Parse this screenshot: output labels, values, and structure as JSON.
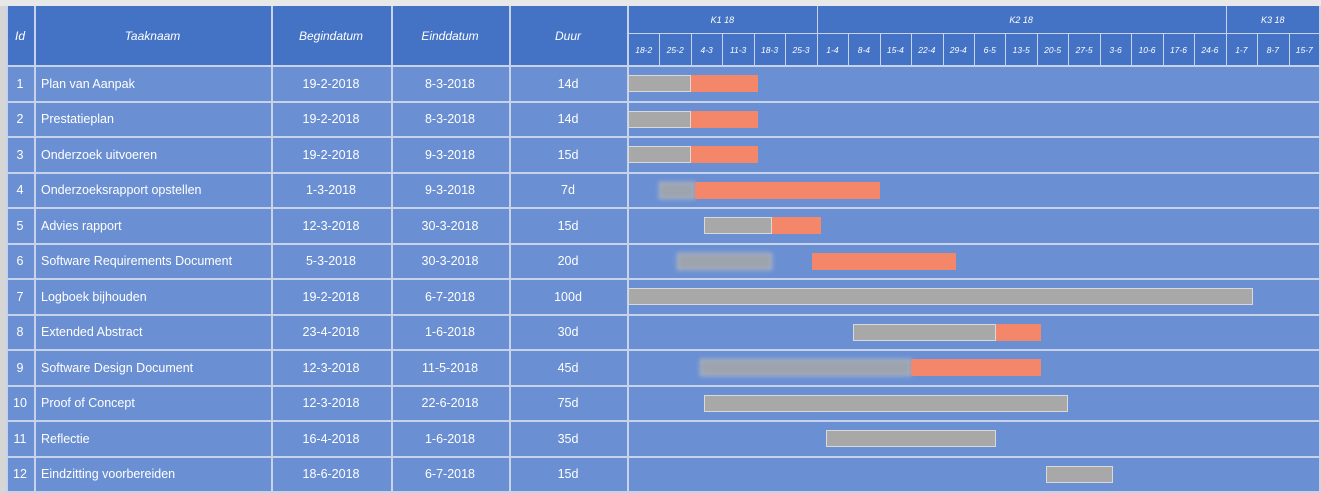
{
  "columns": {
    "id": "Id",
    "name": "Taaknaam",
    "start": "Begindatum",
    "end": "Einddatum",
    "duration": "Duur"
  },
  "quarters": [
    "K1 18",
    "K2 18",
    "K3 18"
  ],
  "weeks": [
    "18-2",
    "25-2",
    "4-3",
    "11-3",
    "18-3",
    "25-3",
    "1-4",
    "8-4",
    "15-4",
    "22-4",
    "29-4",
    "6-5",
    "13-5",
    "20-5",
    "27-5",
    "3-6",
    "10-6",
    "17-6",
    "24-6",
    "1-7",
    "8-7",
    "15-7"
  ],
  "colors": {
    "header": "#4472c4",
    "row": "#6a8fd2",
    "planned": "#a8a8a8",
    "progress": "#f4876a",
    "grid": "#c7d3ea"
  },
  "chart_data": {
    "type": "gantt",
    "title": "",
    "timeline_start": "2018-02-18",
    "timeline_end": "2018-07-22",
    "tasks": [
      {
        "id": "1",
        "name": "Plan van Aanpak",
        "start": "19-2-2018",
        "end": "8-3-2018",
        "duration": "14d",
        "gray": [
          "2018-02-18",
          "2018-03-04"
        ],
        "orange": [
          "2018-03-04",
          "2018-03-19"
        ]
      },
      {
        "id": "2",
        "name": "Prestatieplan",
        "start": "19-2-2018",
        "end": "8-3-2018",
        "duration": "14d",
        "gray": [
          "2018-02-18",
          "2018-03-04"
        ],
        "orange": [
          "2018-03-04",
          "2018-03-19"
        ]
      },
      {
        "id": "3",
        "name": "Onderzoek uitvoeren",
        "start": "19-2-2018",
        "end": "9-3-2018",
        "duration": "15d",
        "gray": [
          "2018-02-18",
          "2018-03-04"
        ],
        "orange": [
          "2018-03-04",
          "2018-03-19"
        ]
      },
      {
        "id": "4",
        "name": "Onderzoeksrapport opstellen",
        "start": "1-3-2018",
        "end": "9-3-2018",
        "duration": "7d",
        "gray": [
          "2018-02-25",
          "2018-03-05"
        ],
        "gray_blurred": true,
        "orange": [
          "2018-03-05",
          "2018-04-15"
        ]
      },
      {
        "id": "5",
        "name": "Advies rapport",
        "start": "12-3-2018",
        "end": "30-3-2018",
        "duration": "15d",
        "gray": [
          "2018-03-07",
          "2018-03-22"
        ],
        "orange": [
          "2018-03-22",
          "2018-04-02"
        ]
      },
      {
        "id": "6",
        "name": "Software Requirements Document",
        "start": "5-3-2018",
        "end": "30-3-2018",
        "duration": "20d",
        "gray": [
          "2018-03-01",
          "2018-03-22"
        ],
        "gray_blurred": true,
        "orange": [
          "2018-03-31",
          "2018-05-02"
        ]
      },
      {
        "id": "7",
        "name": "Logboek bijhouden",
        "start": "19-2-2018",
        "end": "6-7-2018",
        "duration": "100d",
        "gray": [
          "2018-02-18",
          "2018-07-07"
        ],
        "orange": null
      },
      {
        "id": "8",
        "name": "Extended Abstract",
        "start": "23-4-2018",
        "end": "1-6-2018",
        "duration": "30d",
        "gray": [
          "2018-04-09",
          "2018-05-11"
        ],
        "orange": [
          "2018-05-11",
          "2018-05-21"
        ]
      },
      {
        "id": "9",
        "name": "Software Design Document",
        "start": "12-3-2018",
        "end": "11-5-2018",
        "duration": "45d",
        "gray": [
          "2018-03-06",
          "2018-04-22"
        ],
        "gray_blurred": true,
        "orange": [
          "2018-04-22",
          "2018-05-21"
        ]
      },
      {
        "id": "10",
        "name": "Proof of Concept",
        "start": "12-3-2018",
        "end": "22-6-2018",
        "duration": "75d",
        "gray": [
          "2018-03-07",
          "2018-05-27"
        ],
        "orange": null
      },
      {
        "id": "11",
        "name": "Reflectie",
        "start": "16-4-2018",
        "end": "1-6-2018",
        "duration": "35d",
        "gray": [
          "2018-04-03",
          "2018-05-11"
        ],
        "orange": null
      },
      {
        "id": "12",
        "name": "Eindzitting voorbereiden",
        "start": "18-6-2018",
        "end": "6-7-2018",
        "duration": "15d",
        "gray": [
          "2018-05-22",
          "2018-06-06"
        ],
        "orange": null
      }
    ]
  }
}
